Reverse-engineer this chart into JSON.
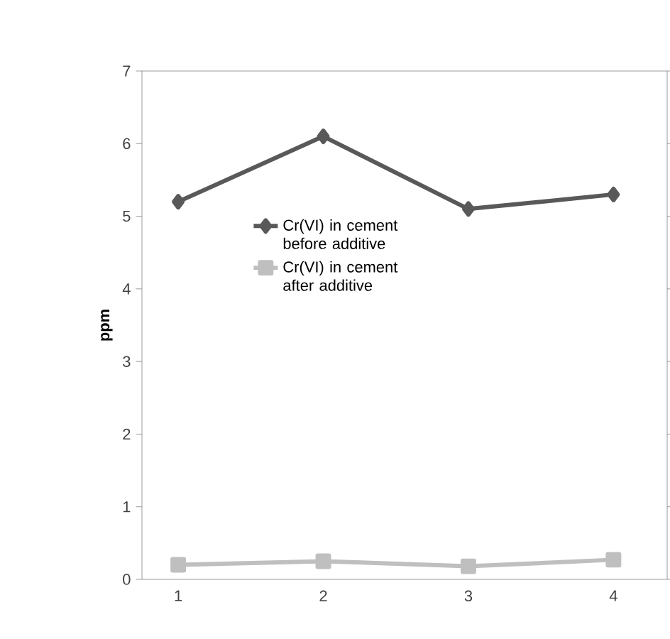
{
  "chart_data": {
    "type": "line",
    "ylabel": "**ppm**",
    "categories": [
      "1",
      "2",
      "3",
      "4"
    ],
    "series": [
      {
        "name": "Cr(VI) in cement before additive",
        "color": "#595959",
        "marker": "diamond",
        "values": [
          5.2,
          6.1,
          5.1,
          5.3
        ]
      },
      {
        "name": "Cr(VI) in cement after additive",
        "color": "#bfbfbf",
        "marker": "square",
        "values": [
          0.2,
          0.25,
          0.18,
          0.27
        ]
      }
    ],
    "ylim": [
      0,
      7
    ],
    "yticks": [
      0,
      1,
      2,
      3,
      4,
      5,
      6,
      7
    ],
    "legend": "center",
    "grid": false
  }
}
